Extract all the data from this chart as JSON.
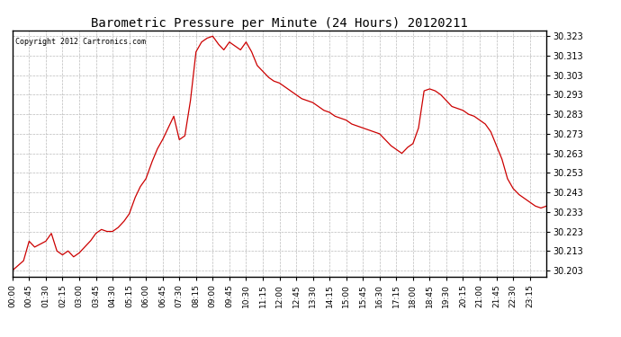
{
  "title": "Barometric Pressure per Minute (24 Hours) 20120211",
  "copyright": "Copyright 2012 Cartronics.com",
  "line_color": "#cc0000",
  "background_color": "#ffffff",
  "grid_color": "#bbbbbb",
  "ylim": [
    30.2,
    30.326
  ],
  "yticks": [
    30.203,
    30.213,
    30.223,
    30.233,
    30.243,
    30.253,
    30.263,
    30.273,
    30.283,
    30.293,
    30.303,
    30.313,
    30.323
  ],
  "xtick_labels": [
    "00:00",
    "00:45",
    "01:30",
    "02:15",
    "03:00",
    "03:45",
    "04:30",
    "05:15",
    "06:00",
    "06:45",
    "07:30",
    "08:15",
    "09:00",
    "09:45",
    "10:30",
    "11:15",
    "12:00",
    "12:45",
    "13:30",
    "14:15",
    "15:00",
    "15:45",
    "16:30",
    "17:15",
    "18:00",
    "18:45",
    "19:30",
    "20:15",
    "21:00",
    "21:45",
    "22:30",
    "23:15"
  ],
  "key_x": [
    0,
    30,
    45,
    60,
    90,
    105,
    120,
    135,
    150,
    165,
    180,
    195,
    210,
    225,
    240,
    255,
    270,
    285,
    300,
    315,
    330,
    345,
    360,
    375,
    390,
    405,
    420,
    435,
    450,
    465,
    480,
    495,
    510,
    525,
    540,
    555,
    570,
    585,
    600,
    615,
    630,
    645,
    660,
    675,
    690,
    705,
    720,
    735,
    750,
    765,
    780,
    795,
    810,
    825,
    840,
    855,
    870,
    885,
    900,
    915,
    930,
    945,
    960,
    975,
    990,
    1005,
    1020,
    1035,
    1050,
    1065,
    1080,
    1095,
    1110,
    1125,
    1140,
    1155,
    1170,
    1185,
    1200,
    1215,
    1230,
    1245,
    1260,
    1275,
    1290,
    1305,
    1320,
    1335,
    1350,
    1365,
    1380,
    1395,
    1410,
    1425,
    1440
  ],
  "key_y": [
    30.203,
    30.208,
    30.218,
    30.215,
    30.218,
    30.222,
    30.213,
    30.211,
    30.213,
    30.21,
    30.212,
    30.215,
    30.218,
    30.222,
    30.224,
    30.223,
    30.223,
    30.225,
    30.228,
    30.232,
    30.24,
    30.246,
    30.25,
    30.258,
    30.265,
    30.27,
    30.276,
    30.282,
    30.27,
    30.272,
    30.29,
    30.315,
    30.32,
    30.322,
    30.323,
    30.319,
    30.316,
    30.32,
    30.318,
    30.316,
    30.32,
    30.315,
    30.308,
    30.305,
    30.302,
    30.3,
    30.299,
    30.297,
    30.295,
    30.293,
    30.291,
    30.29,
    30.289,
    30.287,
    30.285,
    30.284,
    30.282,
    30.281,
    30.28,
    30.278,
    30.277,
    30.276,
    30.275,
    30.274,
    30.273,
    30.27,
    30.267,
    30.265,
    30.263,
    30.266,
    30.268,
    30.276,
    30.295,
    30.296,
    30.295,
    30.293,
    30.29,
    30.287,
    30.286,
    30.285,
    30.283,
    30.282,
    30.28,
    30.278,
    30.274,
    30.267,
    30.26,
    30.25,
    30.245,
    30.242,
    30.24,
    30.238,
    30.236,
    30.235,
    30.236
  ]
}
